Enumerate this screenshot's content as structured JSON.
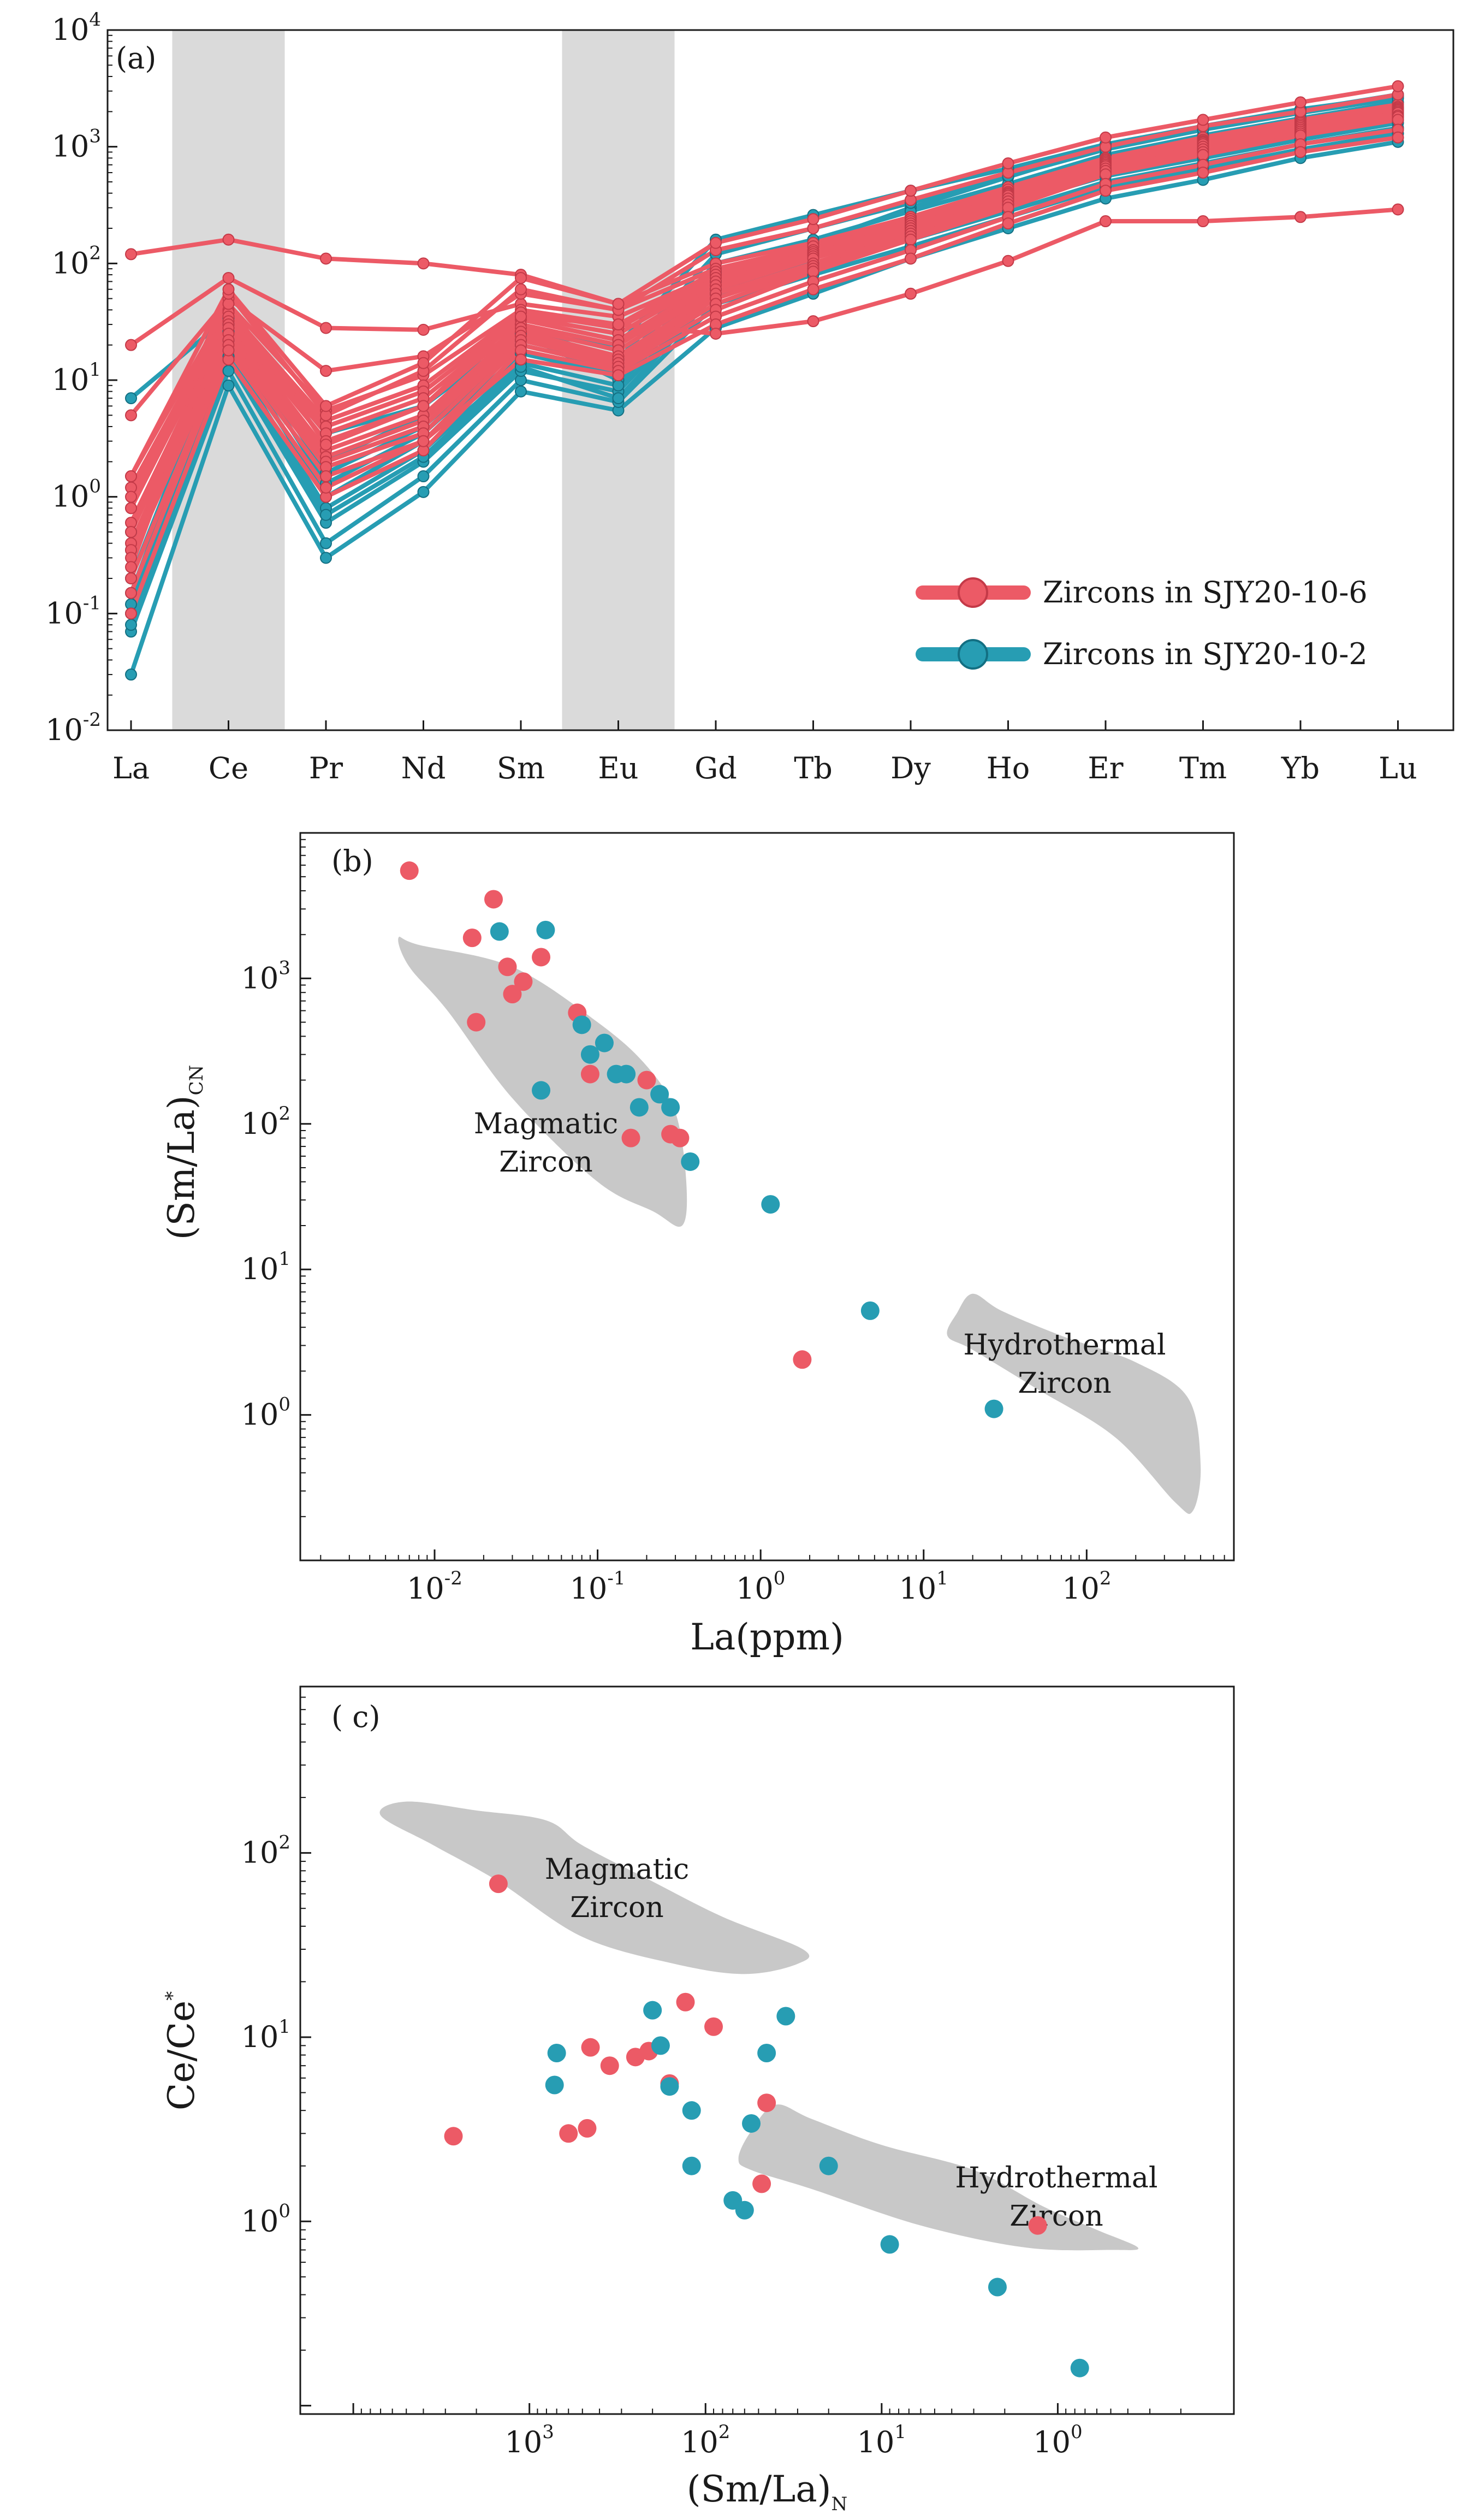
{
  "figure": {
    "colors": {
      "red": "#ec5a66",
      "teal": "#279db3",
      "field": "#c8c8c8",
      "band": "#dadada",
      "axis": "#1a1a1a"
    }
  },
  "chart_data": [
    {
      "type": "line",
      "panel_label": "(a)",
      "title": "",
      "xlabel": "",
      "ylabel": "",
      "yscale": "log",
      "ylim": [
        0.01,
        10000
      ],
      "y_tick_labels": [
        {
          "base": "10",
          "exp": "-2",
          "value": 0.01
        },
        {
          "base": "10",
          "exp": "-1",
          "value": 0.1
        },
        {
          "base": "10",
          "exp": "0",
          "value": 1
        },
        {
          "base": "10",
          "exp": "1",
          "value": 10
        },
        {
          "base": "10",
          "exp": "2",
          "value": 100
        },
        {
          "base": "10",
          "exp": "3",
          "value": 1000
        },
        {
          "base": "10",
          "exp": "4",
          "value": 10000
        }
      ],
      "categories": [
        "La",
        "Ce",
        "Pr",
        "Nd",
        "Sm",
        "Eu",
        "Gd",
        "Tb",
        "Dy",
        "Ho",
        "Er",
        "Tm",
        "Yb",
        "Lu"
      ],
      "shaded_categories": [
        "Ce",
        "Eu"
      ],
      "legend": [
        {
          "label": "Zircons in SJY20-10-6",
          "group": "red"
        },
        {
          "label": "Zircons in SJY20-10-2",
          "group": "teal"
        }
      ],
      "legend_position": "bottom-right",
      "series": [
        {
          "group": "teal",
          "values": [
            7,
            35,
            3.5,
            6,
            25,
            10,
            80,
            150,
            300,
            550,
            1000,
            1500,
            2100,
            2700
          ]
        },
        {
          "group": "teal",
          "values": [
            0.03,
            9,
            0.3,
            1.1,
            8,
            5.5,
            28,
            55,
            110,
            200,
            360,
            520,
            800,
            1100
          ]
        },
        {
          "group": "teal",
          "values": [
            0.07,
            12,
            0.4,
            1.5,
            10,
            6.5,
            45,
            80,
            140,
            250,
            450,
            650,
            950,
            1300
          ]
        },
        {
          "group": "teal",
          "values": [
            0.08,
            15,
            0.6,
            2,
            12,
            8,
            60,
            100,
            180,
            320,
            560,
            800,
            1150,
            1600
          ]
        },
        {
          "group": "teal",
          "values": [
            0.12,
            18,
            0.8,
            2.5,
            14,
            9,
            70,
            120,
            210,
            370,
            650,
            950,
            1350,
            1900
          ]
        },
        {
          "group": "teal",
          "values": [
            0.15,
            22,
            1,
            3,
            17,
            11,
            85,
            140,
            250,
            430,
            750,
            1100,
            1550,
            2100
          ]
        },
        {
          "group": "teal",
          "values": [
            0.2,
            26,
            1.3,
            3.5,
            20,
            13,
            100,
            160,
            280,
            480,
            850,
            1250,
            1750,
            2400
          ]
        },
        {
          "group": "teal",
          "values": [
            0.35,
            30,
            1.6,
            4,
            22,
            15,
            120,
            200,
            330,
            560,
            950,
            1400,
            1950,
            2600
          ]
        },
        {
          "group": "teal",
          "values": [
            0.5,
            34,
            2,
            5,
            25,
            20,
            160,
            260,
            420,
            650,
            1050,
            1500,
            2050,
            2800
          ]
        },
        {
          "group": "teal",
          "values": [
            0.1,
            16,
            0.7,
            2.2,
            13,
            7,
            55,
            90,
            160,
            280,
            500,
            720,
            1050,
            1450
          ]
        },
        {
          "group": "red",
          "values": [
            120,
            160,
            110,
            100,
            80,
            45,
            100,
            150,
            250,
            400,
            700,
            1000,
            1400,
            1800
          ]
        },
        {
          "group": "red",
          "values": [
            20,
            75,
            28,
            27,
            45,
            35,
            80,
            120,
            200,
            350,
            600,
            900,
            1300,
            1700
          ]
        },
        {
          "group": "red",
          "values": [
            5,
            50,
            12,
            16,
            55,
            40,
            90,
            140,
            240,
            420,
            750,
            1100,
            1600,
            2100
          ]
        },
        {
          "group": "red",
          "values": [
            1.5,
            45,
            5.5,
            11,
            40,
            30,
            85,
            140,
            250,
            450,
            800,
            1200,
            1700,
            2300
          ]
        },
        {
          "group": "red",
          "values": [
            1.2,
            40,
            4.5,
            9,
            38,
            28,
            80,
            130,
            240,
            430,
            780,
            1150,
            1650,
            2200
          ]
        },
        {
          "group": "red",
          "values": [
            1,
            38,
            4,
            8,
            35,
            25,
            75,
            125,
            230,
            410,
            760,
            1120,
            1600,
            2150
          ]
        },
        {
          "group": "red",
          "values": [
            0.8,
            35,
            3.5,
            7,
            33,
            22,
            70,
            120,
            220,
            400,
            740,
            1100,
            1550,
            2100
          ]
        },
        {
          "group": "red",
          "values": [
            0.6,
            32,
            3,
            6,
            30,
            20,
            65,
            115,
            210,
            390,
            720,
            1080,
            1500,
            2050
          ]
        },
        {
          "group": "red",
          "values": [
            0.5,
            30,
            2.5,
            5,
            28,
            18,
            60,
            110,
            200,
            380,
            700,
            1050,
            1450,
            2000
          ]
        },
        {
          "group": "red",
          "values": [
            0.4,
            28,
            2.2,
            4.5,
            26,
            16,
            55,
            100,
            190,
            360,
            680,
            1000,
            1400,
            1950
          ]
        },
        {
          "group": "red",
          "values": [
            0.35,
            25,
            2,
            4,
            24,
            15,
            50,
            95,
            180,
            340,
            650,
            950,
            1350,
            1850
          ]
        },
        {
          "group": "red",
          "values": [
            0.3,
            22,
            1.8,
            3.5,
            22,
            14,
            45,
            90,
            170,
            320,
            620,
            900,
            1300,
            1800
          ]
        },
        {
          "group": "red",
          "values": [
            0.2,
            20,
            1.5,
            3,
            20,
            13,
            40,
            85,
            160,
            300,
            580,
            850,
            1250,
            1700
          ]
        },
        {
          "group": "red",
          "values": [
            0.1,
            15,
            1,
            2.5,
            18,
            12,
            35,
            70,
            130,
            250,
            480,
            700,
            1050,
            1400
          ]
        },
        {
          "group": "red",
          "values": [
            0.15,
            18,
            1.2,
            3,
            15,
            11,
            30,
            60,
            110,
            220,
            420,
            600,
            900,
            1200
          ]
        },
        {
          "group": "red",
          "values": [
            0.25,
            45,
            2.8,
            6,
            35,
            30,
            25,
            32,
            55,
            105,
            230,
            230,
            250,
            290
          ]
        },
        {
          "group": "red",
          "values": [
            0.8,
            55,
            5,
            12,
            60,
            40,
            130,
            200,
            350,
            600,
            1000,
            1500,
            2000,
            2800
          ]
        },
        {
          "group": "red",
          "values": [
            1.5,
            60,
            6,
            14,
            75,
            45,
            150,
            240,
            420,
            720,
            1200,
            1700,
            2400,
            3300
          ]
        }
      ]
    },
    {
      "type": "scatter",
      "panel_label": "(b)",
      "title": "",
      "xlabel": "La(ppm)",
      "ylabel": "(Sm/La)CN",
      "xscale": "log",
      "yscale": "log",
      "xlim": [
        0.0015,
        800
      ],
      "ylim": [
        0.1,
        10000
      ],
      "x_tick_labels": [
        {
          "base": "10",
          "exp": "-2",
          "value": 0.01
        },
        {
          "base": "10",
          "exp": "-1",
          "value": 0.1
        },
        {
          "base": "10",
          "exp": "0",
          "value": 1
        },
        {
          "base": "10",
          "exp": "1",
          "value": 10
        },
        {
          "base": "10",
          "exp": "2",
          "value": 100
        }
      ],
      "y_tick_labels": [
        {
          "base": "10",
          "exp": "0",
          "value": 1
        },
        {
          "base": "10",
          "exp": "1",
          "value": 10
        },
        {
          "base": "10",
          "exp": "2",
          "value": 100
        },
        {
          "base": "10",
          "exp": "3",
          "value": 1000
        }
      ],
      "fields": [
        {
          "name": "magmatic",
          "label_lines": [
            "Magmatic",
            "Zircon"
          ],
          "polygon": [
            [
              0.006,
              1900
            ],
            [
              0.008,
              1700
            ],
            [
              0.03,
              1200
            ],
            [
              0.1,
              500
            ],
            [
              0.2,
              250
            ],
            [
              0.3,
              120
            ],
            [
              0.35,
              40
            ],
            [
              0.33,
              20
            ],
            [
              0.22,
              25
            ],
            [
              0.1,
              40
            ],
            [
              0.03,
              150
            ],
            [
              0.012,
              600
            ],
            [
              0.007,
              1200
            ]
          ]
        },
        {
          "name": "hydrothermal",
          "label_lines": [
            "Hydrothermal",
            "Zircon"
          ],
          "polygon": [
            [
              14,
              3.5
            ],
            [
              16,
              5
            ],
            [
              20,
              6.8
            ],
            [
              30,
              5.2
            ],
            [
              70,
              3.5
            ],
            [
              200,
              2.3
            ],
            [
              420,
              1.3
            ],
            [
              500,
              0.45
            ],
            [
              450,
              0.22
            ],
            [
              350,
              0.25
            ],
            [
              150,
              0.7
            ],
            [
              50,
              1.5
            ],
            [
              20,
              2.8
            ]
          ]
        }
      ],
      "series": [
        {
          "group": "red",
          "x": [
            0.007,
            0.017,
            0.023,
            0.028,
            0.035,
            0.045,
            0.018,
            0.03,
            0.075,
            0.09,
            0.2,
            0.28,
            0.32,
            0.16,
            1.8
          ],
          "y": [
            5500,
            1900,
            3500,
            1200,
            950,
            1400,
            500,
            780,
            580,
            220,
            200,
            85,
            80,
            80,
            2.4
          ]
        },
        {
          "group": "teal",
          "x": [
            0.025,
            0.048,
            0.08,
            0.09,
            0.11,
            0.13,
            0.15,
            0.18,
            0.24,
            0.28,
            0.37,
            0.045,
            1.15,
            4.7,
            27
          ],
          "y": [
            2100,
            2150,
            480,
            300,
            360,
            220,
            220,
            130,
            160,
            130,
            55,
            170,
            28,
            5.2,
            1.1
          ]
        }
      ]
    },
    {
      "type": "scatter",
      "panel_label": "( c)",
      "title": "",
      "xlabel": "(Sm/La)N",
      "ylabel": "Ce/Ce*",
      "xscale": "log",
      "xaxis_reversed": true,
      "yscale": "log",
      "xlim": [
        20000,
        0.1
      ],
      "ylim": [
        0.09,
        800
      ],
      "x_tick_labels": [
        {
          "base": "10",
          "exp": "3",
          "value": 1000
        },
        {
          "base": "10",
          "exp": "2",
          "value": 100
        },
        {
          "base": "10",
          "exp": "1",
          "value": 10
        },
        {
          "base": "10",
          "exp": "0",
          "value": 1
        }
      ],
      "y_tick_labels": [
        {
          "base": "10",
          "exp": "0",
          "value": 1
        },
        {
          "base": "10",
          "exp": "1",
          "value": 10
        },
        {
          "base": "10",
          "exp": "2",
          "value": 100
        }
      ],
      "fields": [
        {
          "name": "magmatic",
          "label_lines": [
            "Magmatic",
            "Zircon"
          ],
          "polygon": [
            [
              7000,
              160
            ],
            [
              5000,
              190
            ],
            [
              2000,
              170
            ],
            [
              800,
              150
            ],
            [
              500,
              110
            ],
            [
              200,
              70
            ],
            [
              80,
              45
            ],
            [
              28,
              30
            ],
            [
              30,
              25
            ],
            [
              60,
              22
            ],
            [
              150,
              25
            ],
            [
              500,
              35
            ],
            [
              1500,
              70
            ],
            [
              3500,
              110
            ]
          ]
        },
        {
          "name": "hydrothermal",
          "label_lines": [
            "Hydrothermal",
            "Zircon"
          ],
          "polygon": [
            [
              65,
              2.2
            ],
            [
              55,
              3.1
            ],
            [
              40,
              4.3
            ],
            [
              25,
              3.6
            ],
            [
              10,
              2.6
            ],
            [
              3,
              1.9
            ],
            [
              1.2,
              1.2
            ],
            [
              0.6,
              0.9
            ],
            [
              0.35,
              0.72
            ],
            [
              0.5,
              0.7
            ],
            [
              1.5,
              0.72
            ],
            [
              6,
              0.95
            ],
            [
              25,
              1.5
            ],
            [
              55,
              1.9
            ]
          ]
        }
      ],
      "series": [
        {
          "group": "red",
          "x": [
            1500,
            450,
            130,
            90,
            210,
            250,
            160,
            350,
            45,
            48,
            1.3,
            600,
            470,
            2700
          ],
          "y": [
            68,
            8.8,
            15.5,
            11.4,
            8.4,
            7.8,
            5.6,
            7,
            4.4,
            1.6,
            0.95,
            3,
            3.2,
            2.9
          ]
        },
        {
          "group": "teal",
          "x": [
            700,
            720,
            180,
            45,
            160,
            200,
            120,
            120,
            55,
            20,
            70,
            60,
            35,
            9,
            2.2,
            0.75
          ],
          "y": [
            8.2,
            5.5,
            9,
            8.2,
            5.4,
            14,
            4,
            2,
            3.4,
            2,
            1.3,
            1.15,
            13,
            0.75,
            0.44,
            0.16
          ]
        }
      ]
    }
  ]
}
